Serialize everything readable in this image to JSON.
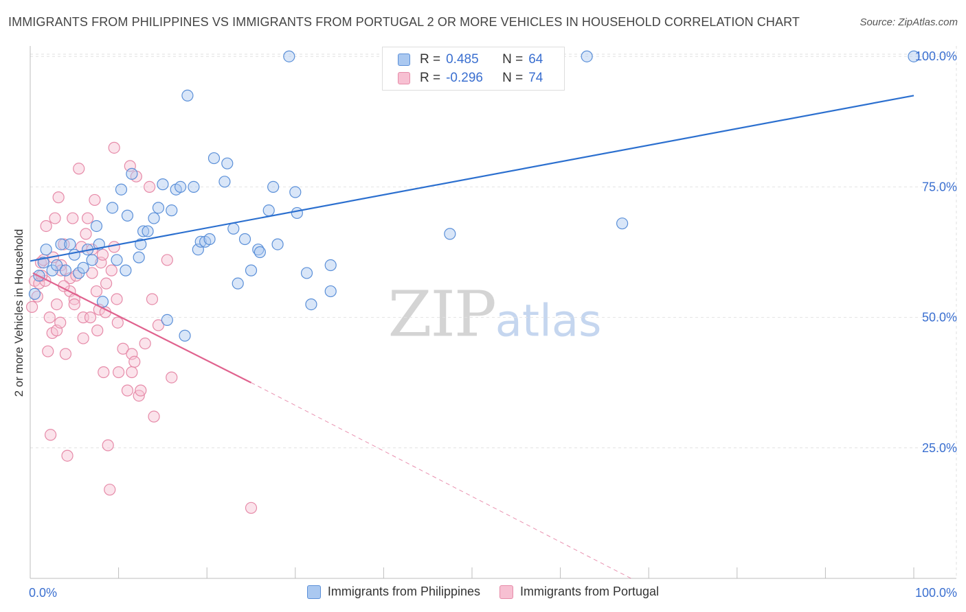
{
  "header": {
    "title": "IMMIGRANTS FROM PHILIPPINES VS IMMIGRANTS FROM PORTUGAL 2 OR MORE VEHICLES IN HOUSEHOLD CORRELATION CHART",
    "source": "Source: ZipAtlas.com"
  },
  "legend_top": {
    "rows": [
      {
        "r_label": "R =",
        "r_value": "0.485",
        "n_label": "N =",
        "n_value": "64"
      },
      {
        "r_label": "R =",
        "r_value": "-0.296",
        "n_label": "N =",
        "n_value": "74"
      }
    ]
  },
  "legend_bottom": {
    "items": [
      "Immigrants from Philippines",
      "Immigrants from Portugal"
    ]
  },
  "watermark": {
    "zip": "ZIP",
    "atlas": "atlas"
  },
  "colors": {
    "blue_fill": "#aac8f0",
    "blue_stroke": "#5a8fd8",
    "blue_line": "#2b6fcf",
    "pink_fill": "#f7c0d2",
    "pink_stroke": "#e68aa8",
    "pink_line": "#e0628e",
    "tick_label": "#3a6fd0"
  },
  "chart_data": {
    "type": "scatter",
    "title": "IMMIGRANTS FROM PHILIPPINES VS IMMIGRANTS FROM PORTUGAL 2 OR MORE VEHICLES IN HOUSEHOLD CORRELATION CHART",
    "xlabel": "",
    "ylabel": "2 or more Vehicles in Household",
    "xlim": [
      0,
      100
    ],
    "ylim": [
      0,
      102
    ],
    "x_tick_labels": [
      "0.0%",
      "100.0%"
    ],
    "y_ticks": [
      25,
      50,
      75,
      100
    ],
    "y_tick_labels": [
      "25.0%",
      "50.0%",
      "75.0%",
      "100.0%"
    ],
    "grid": true,
    "legend_position": "top-center",
    "series": [
      {
        "name": "Immigrants from Philippines",
        "color": "#5a8fd8",
        "trend": {
          "x": [
            0,
            100
          ],
          "y": [
            60.8,
            92.5
          ]
        },
        "points": [
          {
            "x": 0.5,
            "y": 54.5
          },
          {
            "x": 1.0,
            "y": 58.0
          },
          {
            "x": 1.5,
            "y": 60.5
          },
          {
            "x": 1.8,
            "y": 63.0
          },
          {
            "x": 2.5,
            "y": 59.0
          },
          {
            "x": 3.0,
            "y": 60.0
          },
          {
            "x": 3.5,
            "y": 64.0
          },
          {
            "x": 4.0,
            "y": 59.0
          },
          {
            "x": 4.5,
            "y": 64.0
          },
          {
            "x": 5.0,
            "y": 62.0
          },
          {
            "x": 5.5,
            "y": 58.5
          },
          {
            "x": 6.0,
            "y": 59.5
          },
          {
            "x": 6.5,
            "y": 63.0
          },
          {
            "x": 7.0,
            "y": 61.0
          },
          {
            "x": 7.5,
            "y": 67.5
          },
          {
            "x": 7.8,
            "y": 64.0
          },
          {
            "x": 8.2,
            "y": 53.0
          },
          {
            "x": 9.3,
            "y": 71.0
          },
          {
            "x": 9.8,
            "y": 61.0
          },
          {
            "x": 10.3,
            "y": 74.5
          },
          {
            "x": 10.8,
            "y": 59.0
          },
          {
            "x": 11.0,
            "y": 69.5
          },
          {
            "x": 11.5,
            "y": 77.5
          },
          {
            "x": 12.3,
            "y": 61.5
          },
          {
            "x": 12.5,
            "y": 64.0
          },
          {
            "x": 12.8,
            "y": 66.5
          },
          {
            "x": 13.3,
            "y": 66.5
          },
          {
            "x": 14.0,
            "y": 69.0
          },
          {
            "x": 14.5,
            "y": 71.0
          },
          {
            "x": 15.0,
            "y": 75.5
          },
          {
            "x": 15.5,
            "y": 49.5
          },
          {
            "x": 16.0,
            "y": 70.5
          },
          {
            "x": 16.5,
            "y": 74.5
          },
          {
            "x": 17.0,
            "y": 75.0
          },
          {
            "x": 17.5,
            "y": 46.5
          },
          {
            "x": 17.8,
            "y": 92.5
          },
          {
            "x": 18.5,
            "y": 75.0
          },
          {
            "x": 19.0,
            "y": 63.0
          },
          {
            "x": 19.3,
            "y": 64.5
          },
          {
            "x": 19.8,
            "y": 64.5
          },
          {
            "x": 20.3,
            "y": 65.0
          },
          {
            "x": 20.8,
            "y": 80.5
          },
          {
            "x": 22.0,
            "y": 76.0
          },
          {
            "x": 22.3,
            "y": 79.5
          },
          {
            "x": 23.0,
            "y": 67.0
          },
          {
            "x": 23.5,
            "y": 56.5
          },
          {
            "x": 24.3,
            "y": 65.0
          },
          {
            "x": 25.0,
            "y": 59.0
          },
          {
            "x": 25.8,
            "y": 63.0
          },
          {
            "x": 26.0,
            "y": 62.5
          },
          {
            "x": 27.0,
            "y": 70.5
          },
          {
            "x": 27.5,
            "y": 75.0
          },
          {
            "x": 28.0,
            "y": 64.0
          },
          {
            "x": 29.3,
            "y": 100.0
          },
          {
            "x": 30.0,
            "y": 74.0
          },
          {
            "x": 30.2,
            "y": 70.0
          },
          {
            "x": 31.3,
            "y": 58.5
          },
          {
            "x": 31.8,
            "y": 52.5
          },
          {
            "x": 34.0,
            "y": 60.0
          },
          {
            "x": 34.0,
            "y": 55.0
          },
          {
            "x": 47.5,
            "y": 66.0
          },
          {
            "x": 63.0,
            "y": 100.0
          },
          {
            "x": 67.0,
            "y": 68.0
          },
          {
            "x": 100.0,
            "y": 100.0
          }
        ]
      },
      {
        "name": "Immigrants from Portugal",
        "color": "#e68aa8",
        "trend": {
          "x": [
            0.3,
            25.0
          ],
          "y": [
            58.5,
            37.5
          ]
        },
        "trend_extension": {
          "x": [
            25.0,
            68.0
          ],
          "y": [
            37.5,
            0.0
          ]
        },
        "points": [
          {
            "x": 0.2,
            "y": 52.0
          },
          {
            "x": 0.5,
            "y": 57.0
          },
          {
            "x": 0.8,
            "y": 54.0
          },
          {
            "x": 1.0,
            "y": 56.5
          },
          {
            "x": 1.2,
            "y": 60.5
          },
          {
            "x": 1.5,
            "y": 61.0
          },
          {
            "x": 1.7,
            "y": 57.0
          },
          {
            "x": 1.8,
            "y": 67.5
          },
          {
            "x": 2.0,
            "y": 43.5
          },
          {
            "x": 2.2,
            "y": 50.0
          },
          {
            "x": 2.3,
            "y": 27.5
          },
          {
            "x": 2.5,
            "y": 47.0
          },
          {
            "x": 2.8,
            "y": 69.0
          },
          {
            "x": 3.0,
            "y": 52.5
          },
          {
            "x": 3.0,
            "y": 47.5
          },
          {
            "x": 3.2,
            "y": 73.0
          },
          {
            "x": 3.4,
            "y": 49.0
          },
          {
            "x": 3.5,
            "y": 60.0
          },
          {
            "x": 3.5,
            "y": 59.0
          },
          {
            "x": 3.8,
            "y": 64.0
          },
          {
            "x": 4.0,
            "y": 43.0
          },
          {
            "x": 4.2,
            "y": 23.5
          },
          {
            "x": 4.5,
            "y": 57.5
          },
          {
            "x": 4.5,
            "y": 55.0
          },
          {
            "x": 4.8,
            "y": 69.0
          },
          {
            "x": 5.0,
            "y": 53.5
          },
          {
            "x": 5.0,
            "y": 52.5
          },
          {
            "x": 5.5,
            "y": 78.5
          },
          {
            "x": 5.8,
            "y": 63.5
          },
          {
            "x": 6.0,
            "y": 50.0
          },
          {
            "x": 6.0,
            "y": 46.0
          },
          {
            "x": 6.5,
            "y": 69.0
          },
          {
            "x": 6.8,
            "y": 50.0
          },
          {
            "x": 7.0,
            "y": 58.5
          },
          {
            "x": 7.0,
            "y": 63.0
          },
          {
            "x": 7.3,
            "y": 72.5
          },
          {
            "x": 7.5,
            "y": 55.0
          },
          {
            "x": 7.8,
            "y": 51.5
          },
          {
            "x": 8.0,
            "y": 60.5
          },
          {
            "x": 8.2,
            "y": 62.0
          },
          {
            "x": 8.3,
            "y": 39.5
          },
          {
            "x": 8.5,
            "y": 51.0
          },
          {
            "x": 8.8,
            "y": 25.5
          },
          {
            "x": 9.0,
            "y": 17.0
          },
          {
            "x": 9.2,
            "y": 59.0
          },
          {
            "x": 9.5,
            "y": 63.5
          },
          {
            "x": 9.5,
            "y": 82.5
          },
          {
            "x": 9.8,
            "y": 53.5
          },
          {
            "x": 10.0,
            "y": 39.5
          },
          {
            "x": 10.5,
            "y": 44.0
          },
          {
            "x": 11.0,
            "y": 36.0
          },
          {
            "x": 11.3,
            "y": 79.0
          },
          {
            "x": 11.5,
            "y": 43.0
          },
          {
            "x": 11.5,
            "y": 39.5
          },
          {
            "x": 12.0,
            "y": 77.0
          },
          {
            "x": 12.3,
            "y": 35.0
          },
          {
            "x": 12.5,
            "y": 36.0
          },
          {
            "x": 13.0,
            "y": 45.0
          },
          {
            "x": 13.5,
            "y": 75.0
          },
          {
            "x": 13.8,
            "y": 53.5
          },
          {
            "x": 14.0,
            "y": 31.0
          },
          {
            "x": 15.5,
            "y": 61.0
          },
          {
            "x": 16.0,
            "y": 38.5
          },
          {
            "x": 25.0,
            "y": 13.5
          },
          {
            "x": 1.3,
            "y": 58.0
          },
          {
            "x": 2.6,
            "y": 61.5
          },
          {
            "x": 3.8,
            "y": 56.0
          },
          {
            "x": 5.2,
            "y": 58.0
          },
          {
            "x": 6.3,
            "y": 66.0
          },
          {
            "x": 7.6,
            "y": 47.5
          },
          {
            "x": 8.6,
            "y": 56.5
          },
          {
            "x": 9.9,
            "y": 49.0
          },
          {
            "x": 11.8,
            "y": 41.5
          },
          {
            "x": 14.5,
            "y": 48.5
          }
        ]
      }
    ]
  }
}
